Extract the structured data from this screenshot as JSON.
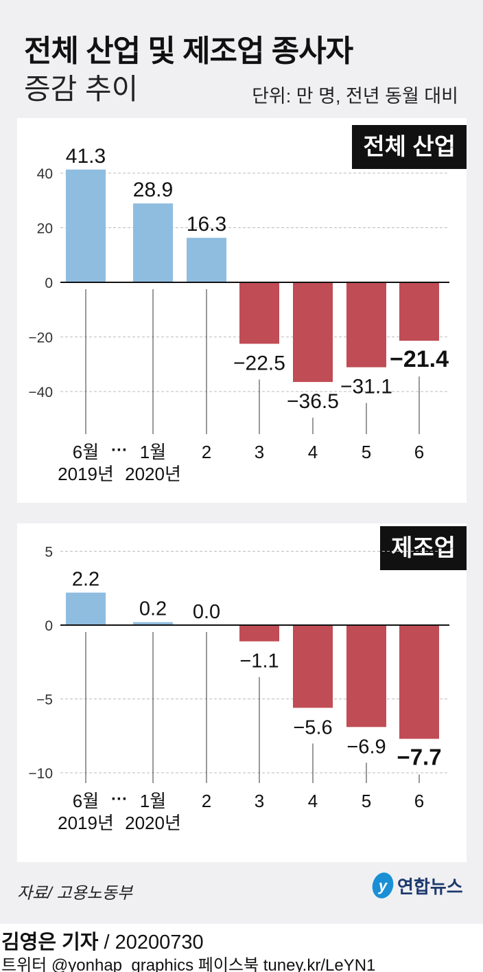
{
  "header": {
    "title": "전체 산업 및 제조업 종사자",
    "subtitle": "증감 추이",
    "unit": "단위: 만 명, 전년 동월 대비"
  },
  "colors": {
    "positive": "#8fbde0",
    "negative": "#c04c55",
    "background": "#f0f0f2"
  },
  "chart_data": [
    {
      "type": "bar",
      "title": "전체 산업",
      "categories": [
        "6월\n2019년",
        "1월\n2020년",
        "2",
        "3",
        "4",
        "5",
        "6"
      ],
      "values": [
        41.3,
        28.9,
        16.3,
        -22.5,
        -36.5,
        -31.1,
        -21.4
      ],
      "value_labels": [
        "41.3",
        "28.9",
        "16.3",
        "−22.5",
        "−36.5",
        "−31.1",
        "−21.4"
      ],
      "yticks": [
        40,
        20,
        0,
        -20,
        -40
      ],
      "ytick_labels": [
        "40",
        "20",
        "0",
        "−20",
        "−40"
      ],
      "ylim": [
        -55,
        50
      ],
      "grid": true,
      "ellipsis": "···"
    },
    {
      "type": "bar",
      "title": "제조업",
      "categories": [
        "6월\n2019년",
        "1월\n2020년",
        "2",
        "3",
        "4",
        "5",
        "6"
      ],
      "values": [
        2.2,
        0.2,
        0.0,
        -1.1,
        -5.6,
        -6.9,
        -7.7
      ],
      "value_labels": [
        "2.2",
        "0.2",
        "0.0",
        "−1.1",
        "−5.6",
        "−6.9",
        "−7.7"
      ],
      "yticks": [
        5,
        0,
        -5,
        -10
      ],
      "ytick_labels": [
        "5",
        "0",
        "−5",
        "−10"
      ],
      "ylim": [
        -11.5,
        6
      ],
      "grid": true,
      "ellipsis": "···"
    }
  ],
  "footer": {
    "source": "자료/ 고용노동부",
    "logo_text": "연합뉴스",
    "reporter": "김영은 기자",
    "date": "/ 20200730",
    "social": "트위터 @yonhap_graphics  페이스북 tuney.kr/LeYN1"
  }
}
